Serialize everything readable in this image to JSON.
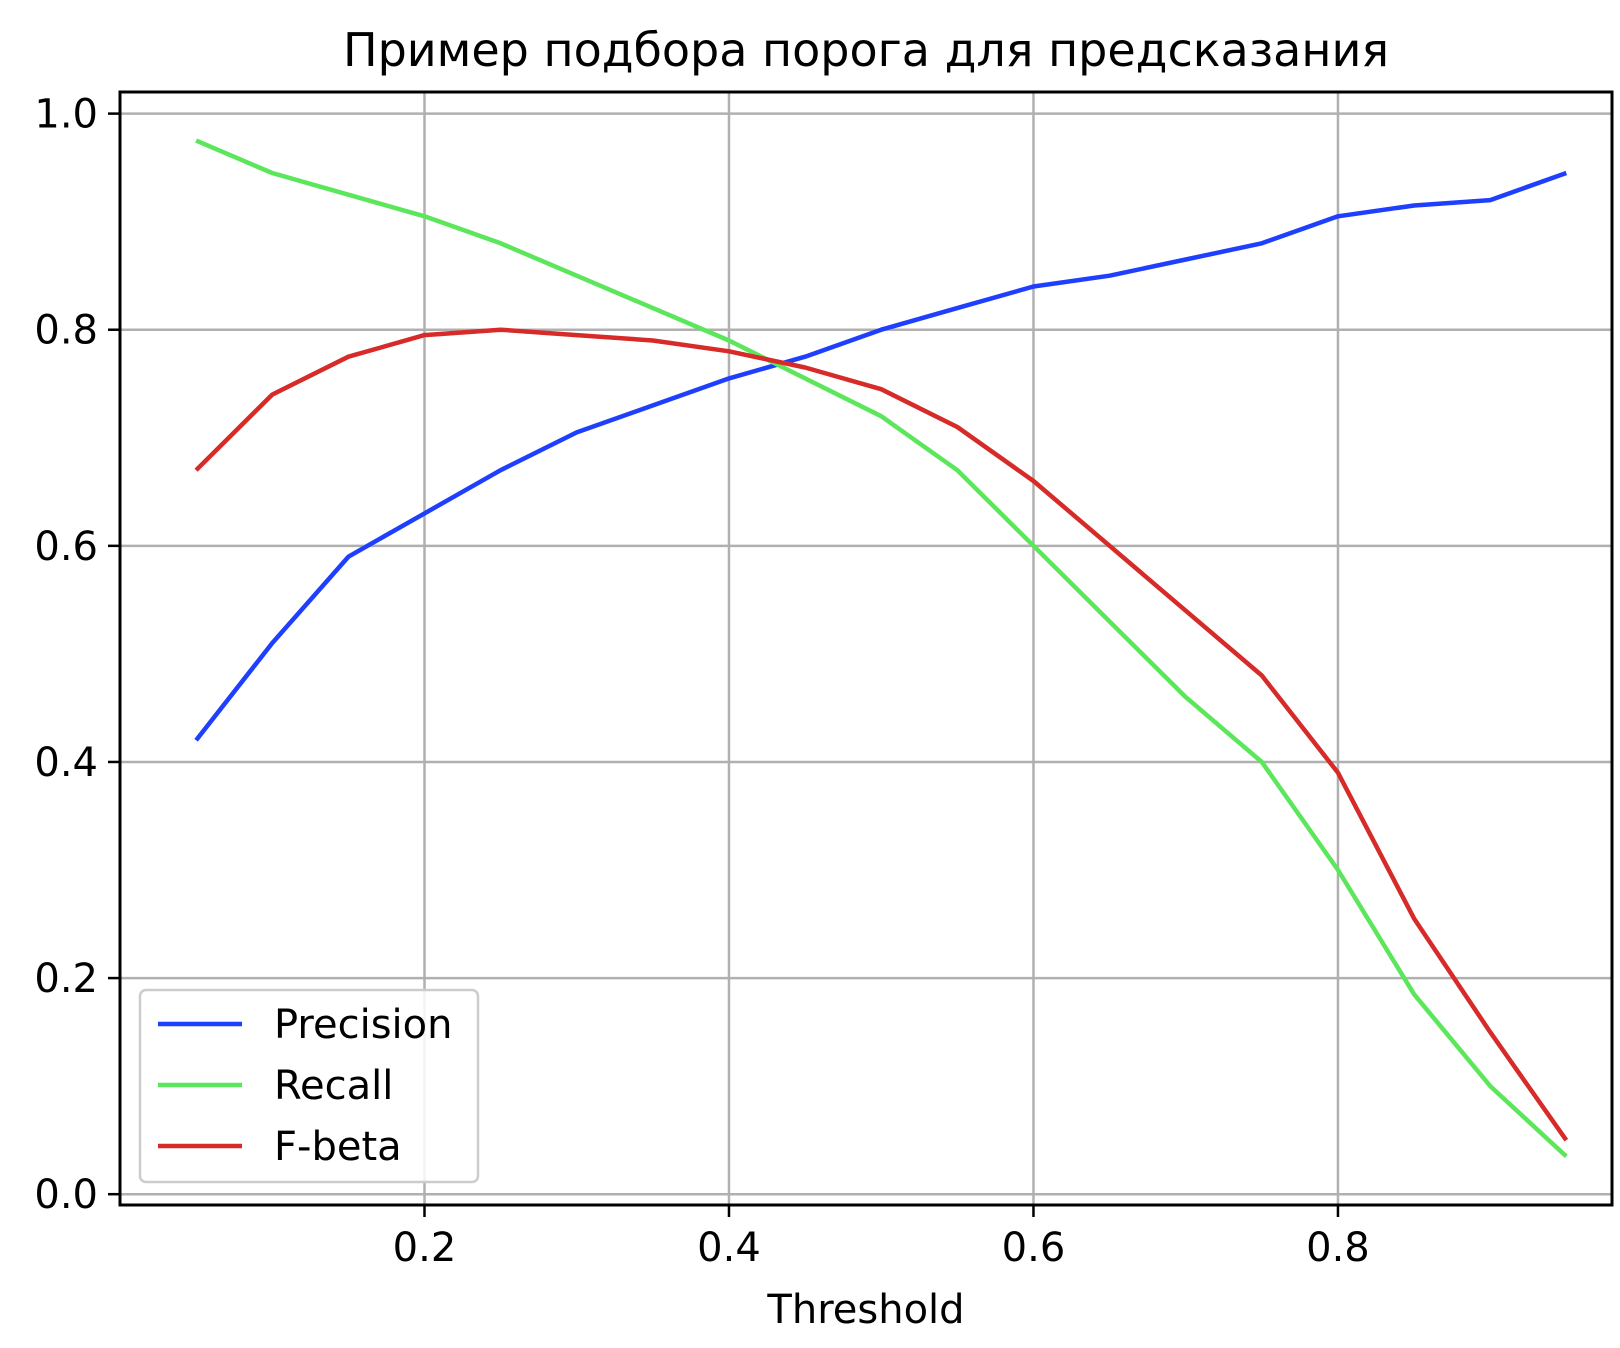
{
  "chart_data": {
    "type": "line",
    "title": "Пример подбора порога для предсказания",
    "xlabel": "Threshold",
    "ylabel": "",
    "xlim": [
      0.0,
      0.98
    ],
    "ylim": [
      -0.01,
      1.02
    ],
    "grid": true,
    "legend_position": "lower-left",
    "x_ticks": [
      0.2,
      0.4,
      0.6,
      0.8
    ],
    "x_tick_labels": [
      "0.2",
      "0.4",
      "0.6",
      "0.8"
    ],
    "y_ticks": [
      0.0,
      0.2,
      0.4,
      0.6,
      0.8,
      1.0
    ],
    "y_tick_labels": [
      "0.0",
      "0.2",
      "0.4",
      "0.6",
      "0.8",
      "1.0"
    ],
    "x": [
      0.05,
      0.1,
      0.15,
      0.2,
      0.25,
      0.3,
      0.35,
      0.4,
      0.45,
      0.5,
      0.55,
      0.6,
      0.65,
      0.7,
      0.75,
      0.8,
      0.85,
      0.9,
      0.95
    ],
    "series": [
      {
        "name": "Precision",
        "color": "#1f3fff",
        "values": [
          0.42,
          0.51,
          0.59,
          0.63,
          0.67,
          0.705,
          0.73,
          0.755,
          0.775,
          0.8,
          0.82,
          0.84,
          0.85,
          0.865,
          0.88,
          0.905,
          0.915,
          0.92,
          0.945
        ]
      },
      {
        "name": "Recall",
        "color": "#5ce65c",
        "values": [
          0.975,
          0.945,
          0.925,
          0.905,
          0.88,
          0.85,
          0.82,
          0.79,
          0.755,
          0.72,
          0.67,
          0.6,
          0.53,
          0.46,
          0.4,
          0.3,
          0.185,
          0.1,
          0.035
        ]
      },
      {
        "name": "F-beta",
        "color": "#d62b28",
        "values": [
          0.67,
          0.74,
          0.775,
          0.795,
          0.8,
          0.795,
          0.79,
          0.78,
          0.765,
          0.745,
          0.71,
          0.66,
          0.6,
          0.54,
          0.48,
          0.39,
          0.255,
          0.15,
          0.05
        ]
      }
    ]
  }
}
